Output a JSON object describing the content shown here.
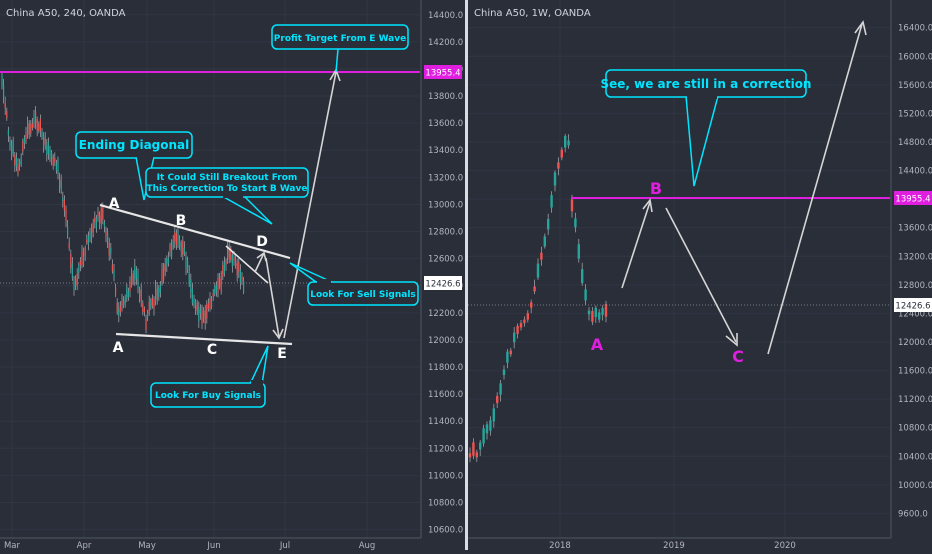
{
  "colors": {
    "background": "#2a2e39",
    "axis_text": "#b2b5be",
    "grid": "#343846",
    "up_candle": "#26a69a",
    "down_candle": "#ef5350",
    "wick": "#9aa0a6",
    "resistance_line": "#e01ee0",
    "resistance_label_bg": "#e01ee0",
    "price_label_bg": "#ffffff",
    "callout_border": "#00e5ff",
    "callout_text": "#00e5ff",
    "callout_bg": "#2a2e39",
    "wave_text_white": "#ffffff",
    "wave_text_magenta": "#e01ee0",
    "arrow": "#d5d5d5",
    "trendline": "#e6e6e6"
  },
  "chart_data": [
    {
      "type": "candlestick",
      "title": "China A50, 240, OANDA",
      "x_tick_labels": [
        "Mar",
        "Apr",
        "May",
        "Jun",
        "Jul",
        "Aug"
      ],
      "y_tick_labels": [
        "10600.0",
        "10800.0",
        "11000.0",
        "11200.0",
        "11400.0",
        "11600.0",
        "11800.0",
        "12000.0",
        "12200.0",
        "12400.0",
        "12600.0",
        "12800.0",
        "13000.0",
        "13200.0",
        "13400.0",
        "13600.0",
        "13800.0",
        "14000.0",
        "14200.0",
        "14400.0"
      ],
      "ylim": [
        10560,
        14450
      ],
      "price_label": "12426.6",
      "resistance_label": "13955.4",
      "resistance_level": 13955.4,
      "current_price": 12426.6,
      "wave_labels": [
        "A",
        "B",
        "D",
        "A",
        "C",
        "E"
      ],
      "callouts": {
        "profit_target": "Profit Target From E Wave",
        "ending_diagonal": "Ending Diagonal",
        "breakout_line1": "It Could Still Breakout From",
        "breakout_line2": "This Correction To Start B Wave",
        "sell_signals": "Look For Sell Signals",
        "buy_signals": "Look For Buy Signals"
      }
    },
    {
      "type": "candlestick",
      "title": "China A50, 1W, OANDA",
      "x_tick_labels": [
        "2018",
        "2019",
        "2020"
      ],
      "y_tick_labels": [
        "9600.0",
        "10000.0",
        "10400.0",
        "10800.0",
        "11200.0",
        "11600.0",
        "12000.0",
        "12400.0",
        "12800.0",
        "13200.0",
        "13600.0",
        "14000.0",
        "14400.0",
        "14800.0",
        "15200.0",
        "15600.0",
        "16000.0",
        "16400.0"
      ],
      "ylim": [
        9480,
        16620
      ],
      "price_label": "12426.6",
      "resistance_label": "13955.4",
      "resistance_level": 13955.4,
      "current_price": 12426.6,
      "wave_labels": [
        "A",
        "B",
        "C"
      ],
      "callouts": {
        "correction": "See, we are still in a correction"
      }
    }
  ]
}
